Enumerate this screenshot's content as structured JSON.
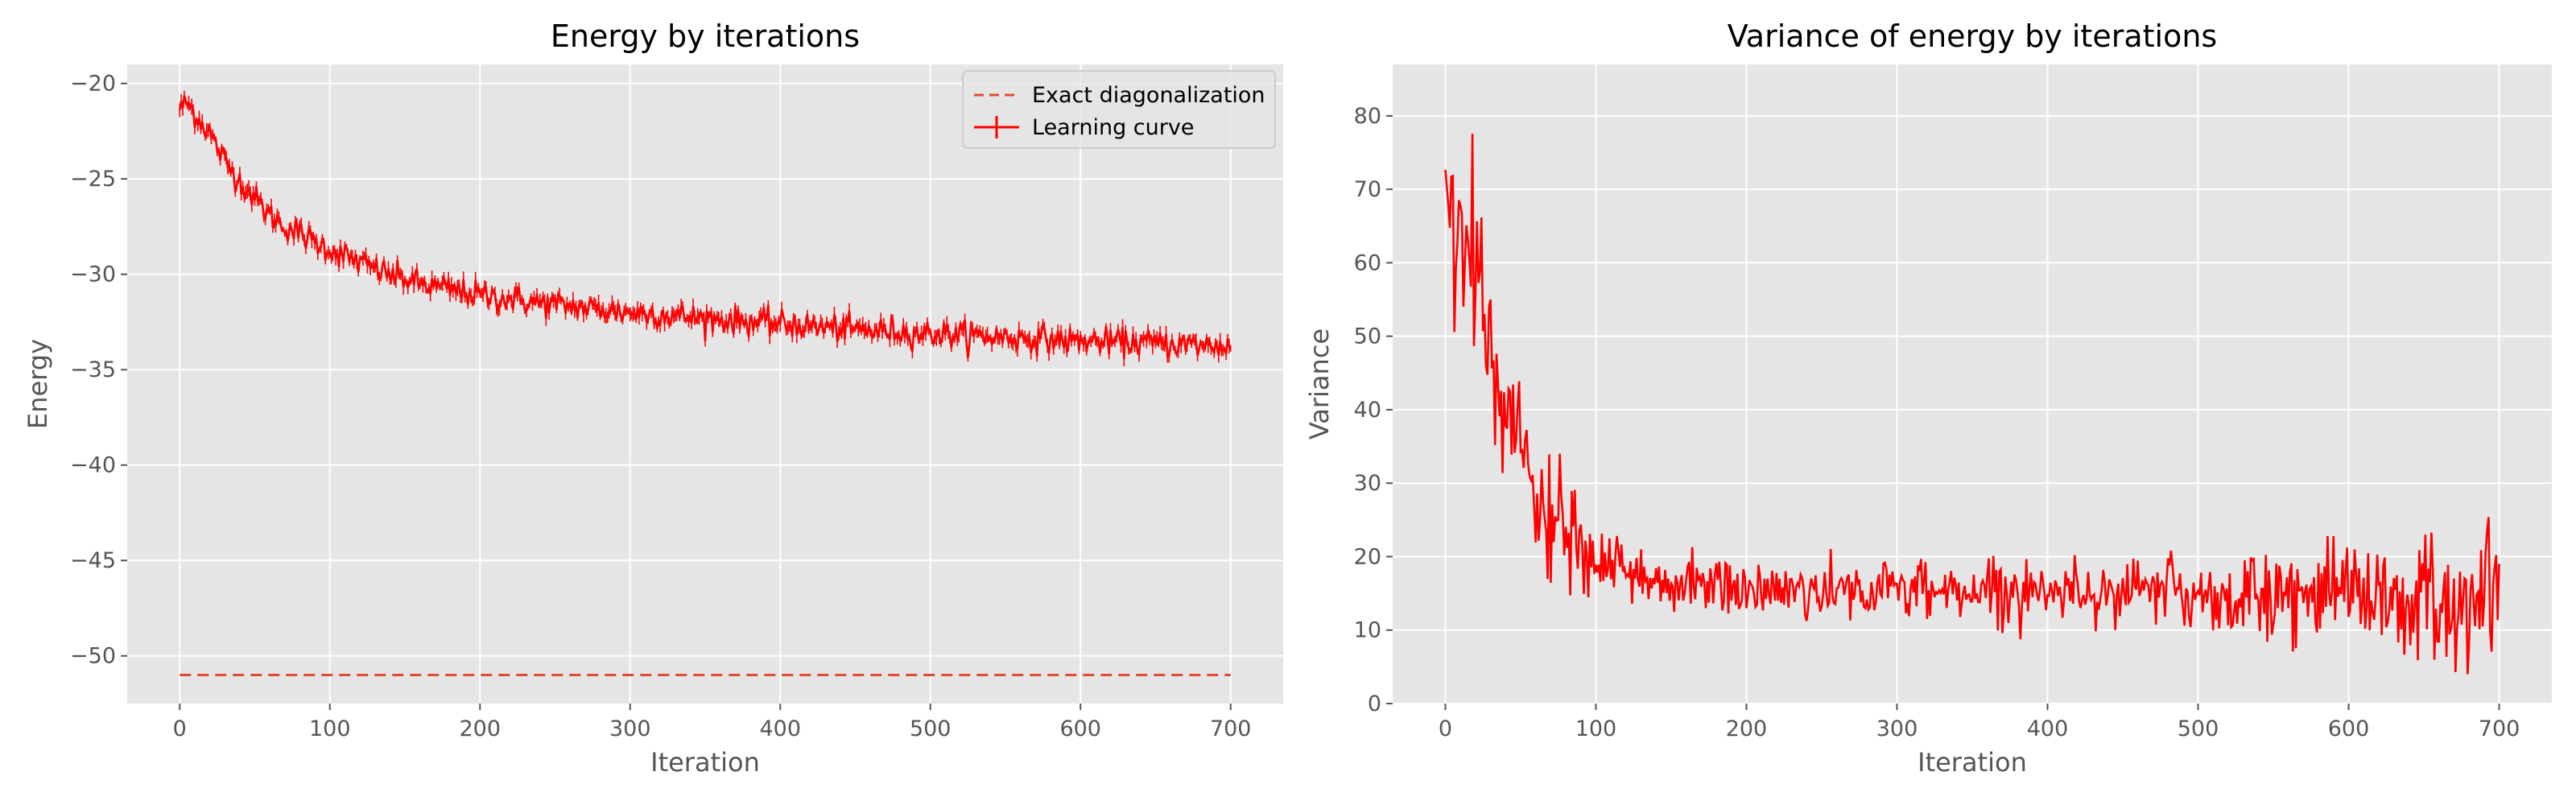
{
  "chart_data": [
    {
      "type": "line",
      "title": "Energy by iterations",
      "xlabel": "Iteration",
      "ylabel": "Energy",
      "xlim": [
        -35,
        735
      ],
      "ylim": [
        -52.5,
        -19
      ],
      "xticks": [
        0,
        100,
        200,
        300,
        400,
        500,
        600,
        700
      ],
      "yticks": [
        -50,
        -45,
        -40,
        -35,
        -30,
        -25,
        -20
      ],
      "grid": true,
      "legend": "top-right",
      "series": [
        {
          "name": "Exact diagonalization",
          "style": "dashed",
          "color": "#e24a33",
          "x": [
            0,
            700
          ],
          "y": [
            -51.0,
            -51.0
          ]
        },
        {
          "name": "Learning curve",
          "style": "solid-errorbar",
          "color": "#ff0000",
          "x": [
            0,
            5,
            10,
            20,
            30,
            40,
            50,
            60,
            70,
            80,
            90,
            100,
            120,
            140,
            160,
            180,
            200,
            250,
            300,
            350,
            400,
            450,
            500,
            550,
            600,
            650,
            700
          ],
          "y": [
            -21.3,
            -21.0,
            -21.6,
            -22.6,
            -24.1,
            -25.1,
            -26.0,
            -26.9,
            -27.5,
            -27.9,
            -28.3,
            -28.7,
            -29.4,
            -30.0,
            -30.5,
            -30.8,
            -31.1,
            -31.6,
            -32.0,
            -32.3,
            -32.6,
            -32.9,
            -33.1,
            -33.3,
            -33.5,
            -33.6,
            -33.8
          ]
        }
      ]
    },
    {
      "type": "line",
      "title": "Variance of energy by iterations",
      "xlabel": "Iteration",
      "ylabel": "Variance",
      "xlim": [
        -35,
        735
      ],
      "ylim": [
        0,
        87
      ],
      "xticks": [
        0,
        100,
        200,
        300,
        400,
        500,
        600,
        700
      ],
      "yticks": [
        0,
        10,
        20,
        30,
        40,
        50,
        60,
        70,
        80
      ],
      "grid": true,
      "series": [
        {
          "color": "#ff0000",
          "x": [
            0,
            5,
            10,
            20,
            30,
            40,
            50,
            60,
            70,
            80,
            90,
            100,
            120,
            150,
            200,
            250,
            300,
            350,
            400,
            450,
            500,
            550,
            600,
            650,
            700
          ],
          "y": [
            72,
            64,
            63,
            58,
            48,
            40,
            33,
            28,
            25,
            23,
            21,
            19,
            17.5,
            16.5,
            15.5,
            15.5,
            15.5,
            15.5,
            15.5,
            15.5,
            15,
            14.5,
            14,
            13.5,
            13
          ]
        }
      ]
    }
  ]
}
